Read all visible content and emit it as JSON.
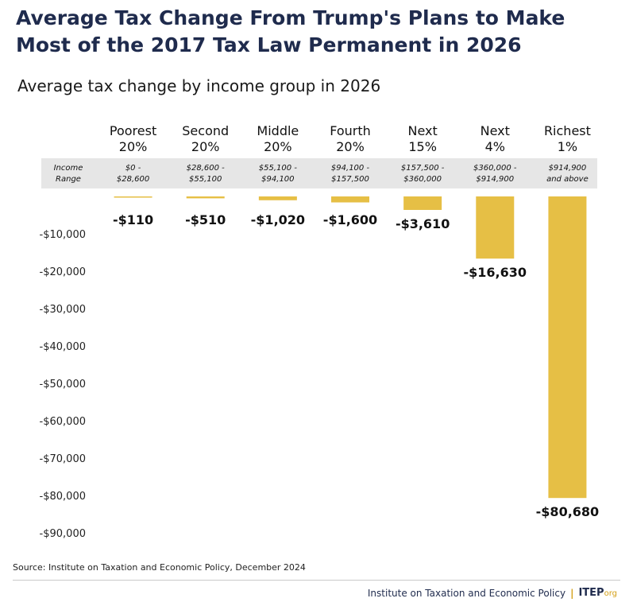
{
  "header": {
    "title": "Average Tax Change From Trump's Plans to Make Most of the 2017 Tax Law Permanent in 2026"
  },
  "chart_data": {
    "type": "bar",
    "title": "Average Tax Change From Trump's Plans to Make Most of the 2017 Tax Law Permanent in 2026",
    "subtitle": "Average tax change by income group in 2026",
    "categories": [
      [
        "Poorest",
        "20%"
      ],
      [
        "Second",
        "20%"
      ],
      [
        "Middle",
        "20%"
      ],
      [
        "Fourth",
        "20%"
      ],
      [
        "Next",
        "15%"
      ],
      [
        "Next",
        "4%"
      ],
      [
        "Richest",
        "1%"
      ]
    ],
    "income_range_label": [
      "Income",
      "Range"
    ],
    "income_ranges": [
      [
        "$0 -",
        "$28,600"
      ],
      [
        "$28,600 -",
        "$55,100"
      ],
      [
        "$55,100 -",
        "$94,100"
      ],
      [
        "$94,100 -",
        "$157,500"
      ],
      [
        "$157,500 -",
        "$360,000"
      ],
      [
        "$360,000 -",
        "$914,900"
      ],
      [
        "$914,900",
        "and above"
      ]
    ],
    "values": [
      -110,
      -510,
      -1020,
      -1600,
      -3610,
      -16630,
      -80680
    ],
    "data_labels": [
      "-$110",
      "-$510",
      "-$1,020",
      "-$1,600",
      "-$3,610",
      "-$16,630",
      "-$80,680"
    ],
    "ylim": [
      -90000,
      0
    ],
    "yticks": [
      -10000,
      -20000,
      -30000,
      -40000,
      -50000,
      -60000,
      -70000,
      -80000,
      -90000
    ],
    "ytick_labels": [
      "-$10,000",
      "-$20,000",
      "-$30,000",
      "-$40,000",
      "-$50,000",
      "-$60,000",
      "-$70,000",
      "-$80,000",
      "-$90,000"
    ],
    "xlabel": "",
    "ylabel": "",
    "grid": false,
    "bar_color": "#e6bf45",
    "band_color": "#e6e6e6",
    "text_color": "#111111"
  },
  "source": "Source: Institute on Taxation and Economic Policy, December 2024",
  "footer": {
    "org_name": "Institute on Taxation and Economic Policy",
    "separator": "|",
    "logo_main": "ITEP",
    "logo_suffix": "org"
  }
}
